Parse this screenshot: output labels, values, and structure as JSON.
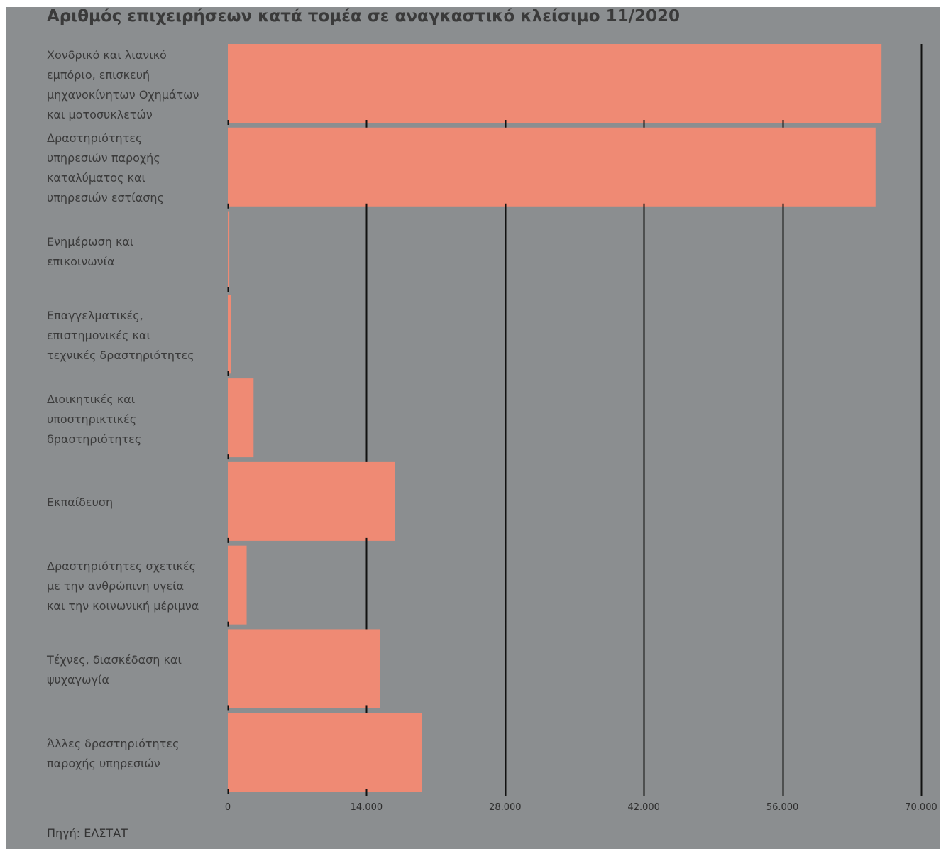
{
  "chart_data": {
    "type": "bar",
    "orientation": "horizontal",
    "title": "Αριθμός επιχειρήσεων κατά τομέα σε αναγκαστικό κλείσιμο 11/2020",
    "source": "Πηγή: ΕΛΣΤΑΤ",
    "categories": [
      "Χονδρικό και λιανικό εμπόριο, επισκευή μηχανοκίνητων Οχημάτων και μοτοσυκλετών",
      "Δραστηριότητες υπηρεσιών παροχής καταλύματος και υπηρεσιών εστίασης",
      "Ενημέρωση και επικοινωνία",
      "Επαγγελματικές, επιστημονικές και τεχνικές δραστηριότητες",
      "Διοικητικές και υποστηρικτικές δραστηριότητες",
      "Εκπαίδευση",
      "Δραστηριότητες σχετικές με την ανθρώπινη υγεία και την κοινωνική μέριμνα",
      "Τέχνες, διασκέδαση και ψυχαγωγία",
      "Άλλες δραστηριότητες παροχής υπηρεσιών"
    ],
    "category_lines": [
      [
        "Χονδρικό και λιανικό",
        "εμπόριο, επισκευή",
        "μηχανοκίνητων Οχημάτων",
        "και μοτοσυκλετών"
      ],
      [
        "Δραστηριότητες",
        "υπηρεσιών παροχής",
        "καταλύματος και",
        "υπηρεσιών εστίασης"
      ],
      [
        "Ενημέρωση και",
        "επικοινωνία"
      ],
      [
        "Επαγγελματικές,",
        "επιστημονικές και",
        "τεχνικές δραστηριότητες"
      ],
      [
        "Διοικητικές και",
        "υποστηρικτικές",
        "δραστηριότητες"
      ],
      [
        "Εκπαίδευση"
      ],
      [
        "Δραστηριότητες σχετικές",
        "με την ανθρώπινη υγεία",
        "και την κοινωνική μέριμνα"
      ],
      [
        "Τέχνες, διασκέδαση και",
        "ψυχαγωγία"
      ],
      [
        "Άλλες δραστηριότητες",
        "παροχής υπηρεσιών"
      ]
    ],
    "values": [
      66000,
      65400,
      150,
      300,
      2600,
      16900,
      1900,
      15400,
      19600
    ],
    "xlim": [
      0,
      70000
    ],
    "x_ticks": [
      0,
      14000,
      28000,
      42000,
      56000,
      70000
    ],
    "x_tick_labels": [
      "0",
      "14.000",
      "28.000",
      "42.000",
      "56.000",
      "70.000"
    ],
    "grid": true,
    "colors": {
      "background": "#8b8e90",
      "bar": "#ef8a74",
      "gridline": "#111111",
      "text": "#3a3a3a"
    }
  }
}
